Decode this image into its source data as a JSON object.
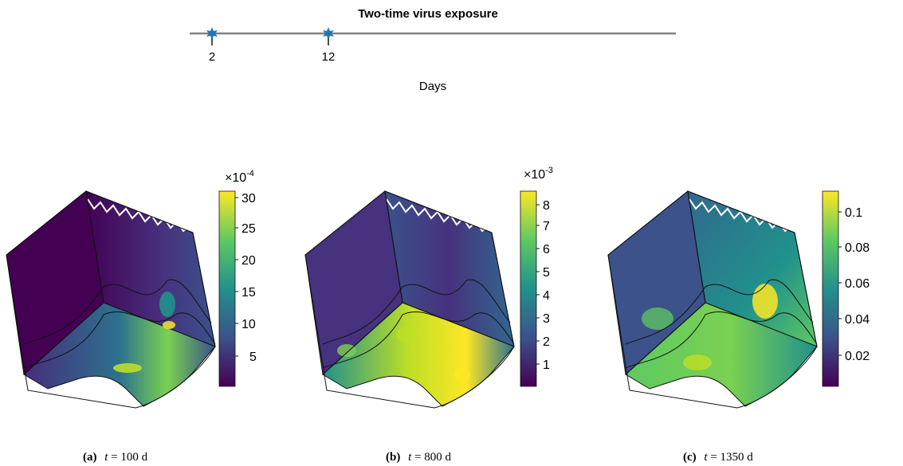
{
  "timeline": {
    "title": "Two-time virus exposure",
    "axis_label": "Days",
    "markers": [
      {
        "value": "2",
        "color": "#1f77b4"
      },
      {
        "value": "12",
        "color": "#1f77b4"
      }
    ],
    "line_color": "#808080"
  },
  "panels": [
    {
      "tag": "(a)",
      "var": "t",
      "eq": " = 100 d",
      "colorbar": {
        "exponent_base": "×10",
        "exponent_power": "-4",
        "ticks": [
          "30",
          "25",
          "20",
          "15",
          "10",
          "5"
        ]
      }
    },
    {
      "tag": "(b)",
      "var": "t",
      "eq": " = 800 d",
      "colorbar": {
        "exponent_base": "×10",
        "exponent_power": "-3",
        "ticks": [
          "8",
          "7",
          "6",
          "5",
          "4",
          "3",
          "2",
          "1"
        ]
      }
    },
    {
      "tag": "(c)",
      "var": "t",
      "eq": " = 1350 d",
      "colorbar": {
        "exponent_base": "",
        "exponent_power": "",
        "ticks": [
          "0.1",
          "0.08",
          "0.06",
          "0.04",
          "0.02"
        ]
      }
    }
  ],
  "colormap": [
    "#440154",
    "#3b528b",
    "#21918c",
    "#5ec962",
    "#fde725"
  ]
}
